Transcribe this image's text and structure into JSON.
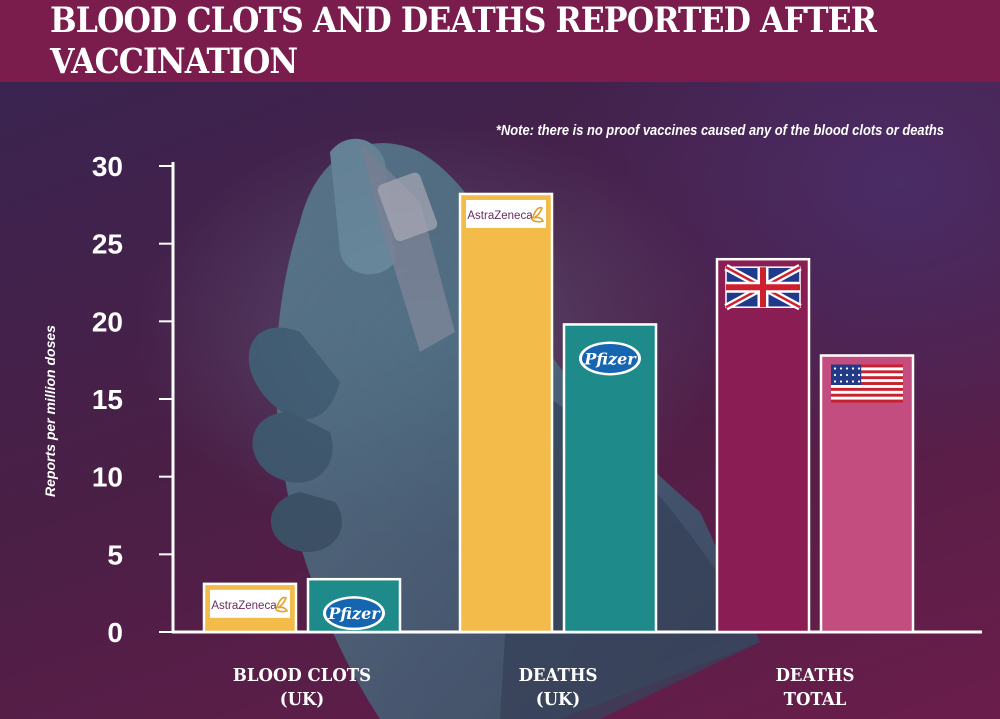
{
  "header": {
    "title": "BLOOD CLOTS AND DEATHS REPORTED AFTER VACCINATION"
  },
  "note": "*Note: there is no proof vaccines caused any of the blood clots or deaths",
  "colors": {
    "astrazeneca": "#f2bb4a",
    "pfizer": "#1f8a8a",
    "uk_total": "#8b1d55",
    "us_total": "#c44d80",
    "header_bg": "#7a1d4d"
  },
  "chart_data": {
    "type": "bar",
    "ylabel": "Reports per million doses",
    "ylim": [
      0,
      30
    ],
    "yticks": [
      "0",
      "5",
      "10",
      "15",
      "20",
      "25",
      "30"
    ],
    "grid": false,
    "groups": [
      {
        "category_lines": [
          "BLOOD CLOTS",
          "(UK)"
        ],
        "bars": [
          {
            "value": 3.1,
            "label": "AstraZeneca",
            "logo": "astrazeneca-logo",
            "color": "#f2bb4a"
          },
          {
            "value": 3.4,
            "label": "Pfizer",
            "logo": "pfizer-logo",
            "color": "#1f8a8a"
          }
        ]
      },
      {
        "category_lines": [
          "DEATHS",
          "(UK)"
        ],
        "bars": [
          {
            "value": 28.2,
            "label": "AstraZeneca",
            "logo": "astrazeneca-logo",
            "color": "#f2bb4a"
          },
          {
            "value": 19.8,
            "label": "Pfizer",
            "logo": "pfizer-logo",
            "color": "#1f8a8a"
          }
        ]
      },
      {
        "category_lines": [
          "DEATHS",
          "TOTAL"
        ],
        "bars": [
          {
            "value": 24.0,
            "label": "",
            "logo": "uk-flag-icon",
            "color": "#8b1d55"
          },
          {
            "value": 17.8,
            "label": "",
            "logo": "us-flag-icon",
            "color": "#c44d80"
          }
        ]
      }
    ]
  }
}
